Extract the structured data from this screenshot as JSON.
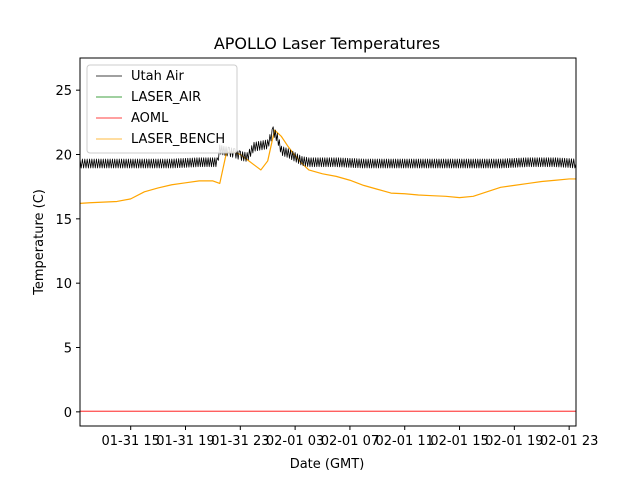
{
  "chart_data": {
    "type": "line",
    "title": "APOLLO Laser Temperatures",
    "xlabel": "Date (GMT)",
    "ylabel": "Temperature (C)",
    "xlim": [
      11.3,
      47.5
    ],
    "ylim": [
      -1.1,
      27.5
    ],
    "x_units": "hours since 01-31 00:00 GMT",
    "x_ticks": [
      {
        "value": 15,
        "label": "01-31 15"
      },
      {
        "value": 19,
        "label": "01-31 19"
      },
      {
        "value": 23,
        "label": "01-31 23"
      },
      {
        "value": 27,
        "label": "02-01 03"
      },
      {
        "value": 31,
        "label": "02-01 07"
      },
      {
        "value": 35,
        "label": "02-01 11"
      },
      {
        "value": 39,
        "label": "02-01 15"
      },
      {
        "value": 43,
        "label": "02-01 19"
      },
      {
        "value": 47,
        "label": "02-01 23"
      }
    ],
    "y_ticks": [
      0,
      5,
      10,
      15,
      20,
      25
    ],
    "legend_position": "upper-left",
    "series": [
      {
        "name": "Utah Air",
        "color": "#000000",
        "points": [
          [
            11.3,
            19.3
          ],
          [
            12,
            19.3
          ],
          [
            14,
            19.3
          ],
          [
            16,
            19.3
          ],
          [
            18,
            19.3
          ],
          [
            20,
            19.4
          ],
          [
            21.3,
            19.4
          ],
          [
            21.5,
            20.4
          ],
          [
            21.8,
            20.3
          ],
          [
            22.2,
            20.2
          ],
          [
            22.6,
            20.1
          ],
          [
            23,
            19.9
          ],
          [
            23.5,
            19.8
          ],
          [
            24,
            20.6
          ],
          [
            25,
            20.8
          ],
          [
            25.4,
            21.8
          ],
          [
            25.7,
            21.3
          ],
          [
            26,
            20.3
          ],
          [
            26.5,
            20.1
          ],
          [
            27,
            19.8
          ],
          [
            27.5,
            19.5
          ],
          [
            28,
            19.4
          ],
          [
            30,
            19.4
          ],
          [
            32,
            19.3
          ],
          [
            34,
            19.3
          ],
          [
            36,
            19.3
          ],
          [
            38,
            19.3
          ],
          [
            40,
            19.3
          ],
          [
            42,
            19.3
          ],
          [
            44,
            19.4
          ],
          [
            46,
            19.4
          ],
          [
            47.5,
            19.3
          ]
        ],
        "oscillation_amplitude": 0.35
      },
      {
        "name": "LASER_AIR",
        "color": "#008000",
        "points": []
      },
      {
        "name": "AOML",
        "color": "#ff0000",
        "points": [
          [
            11.3,
            0.05
          ],
          [
            47.5,
            0.05
          ]
        ]
      },
      {
        "name": "LASER_BENCH",
        "color": "#ffa500",
        "points": [
          [
            11.3,
            16.2
          ],
          [
            12,
            16.25
          ],
          [
            13,
            16.3
          ],
          [
            14,
            16.35
          ],
          [
            15,
            16.55
          ],
          [
            16,
            17.1
          ],
          [
            17,
            17.4
          ],
          [
            18,
            17.65
          ],
          [
            19,
            17.8
          ],
          [
            20,
            17.95
          ],
          [
            21,
            17.95
          ],
          [
            21.5,
            17.75
          ],
          [
            22,
            20.2
          ],
          [
            22.5,
            20.2
          ],
          [
            23,
            20.0
          ],
          [
            23.5,
            19.6
          ],
          [
            24,
            19.2
          ],
          [
            24.5,
            18.8
          ],
          [
            25,
            19.5
          ],
          [
            25.5,
            21.9
          ],
          [
            26,
            21.4
          ],
          [
            26.5,
            20.6
          ],
          [
            27,
            19.9
          ],
          [
            27.5,
            19.3
          ],
          [
            28,
            18.8
          ],
          [
            29,
            18.5
          ],
          [
            30,
            18.3
          ],
          [
            31,
            18.0
          ],
          [
            32,
            17.6
          ],
          [
            33,
            17.3
          ],
          [
            34,
            17.0
          ],
          [
            35,
            16.95
          ],
          [
            36,
            16.85
          ],
          [
            37,
            16.8
          ],
          [
            38,
            16.75
          ],
          [
            39,
            16.65
          ],
          [
            40,
            16.75
          ],
          [
            41,
            17.1
          ],
          [
            42,
            17.45
          ],
          [
            43,
            17.6
          ],
          [
            44,
            17.75
          ],
          [
            45,
            17.9
          ],
          [
            46,
            18.0
          ],
          [
            47,
            18.1
          ],
          [
            47.5,
            18.1
          ]
        ],
        "oscillation_amplitude": 0.0
      }
    ]
  }
}
